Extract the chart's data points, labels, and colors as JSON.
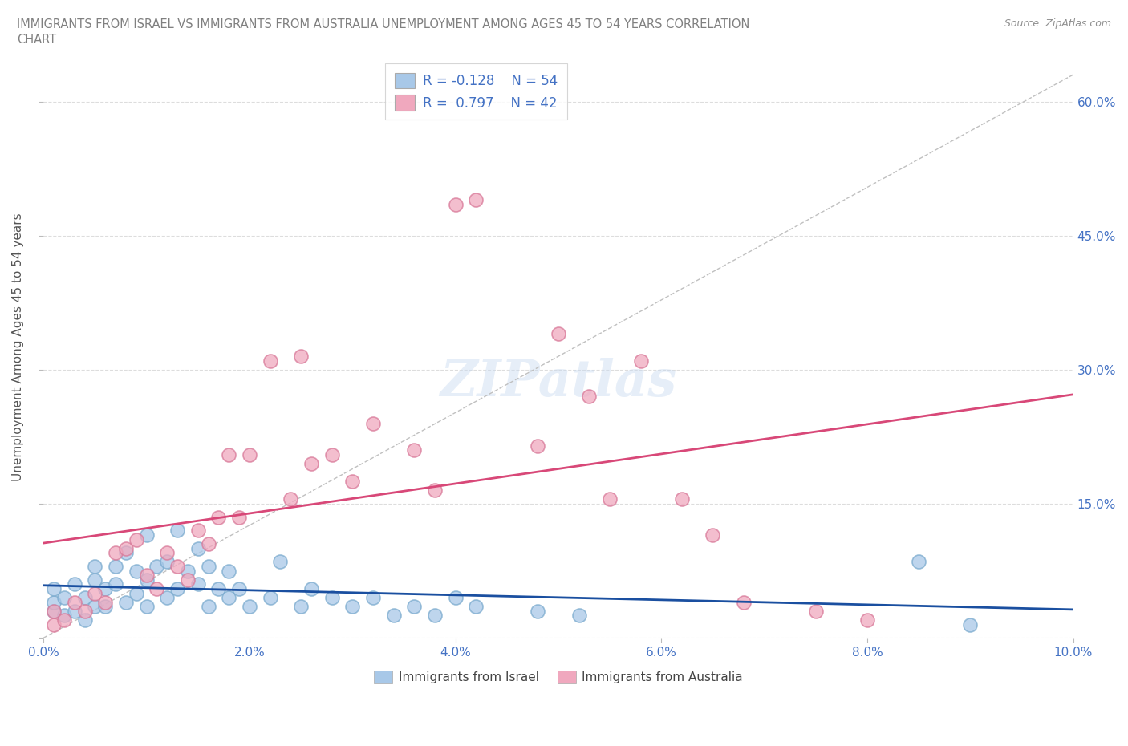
{
  "title_line1": "IMMIGRANTS FROM ISRAEL VS IMMIGRANTS FROM AUSTRALIA UNEMPLOYMENT AMONG AGES 45 TO 54 YEARS CORRELATION",
  "title_line2": "CHART",
  "source": "Source: ZipAtlas.com",
  "ylabel": "Unemployment Among Ages 45 to 54 years",
  "xlim": [
    0.0,
    0.1
  ],
  "ylim": [
    0.0,
    0.65
  ],
  "xticks": [
    0.0,
    0.02,
    0.04,
    0.06,
    0.08,
    0.1
  ],
  "yticks": [
    0.0,
    0.15,
    0.3,
    0.45,
    0.6
  ],
  "ytick_labels_right": [
    "",
    "15.0%",
    "30.0%",
    "45.0%",
    "60.0%"
  ],
  "xtick_labels": [
    "0.0%",
    "2.0%",
    "4.0%",
    "6.0%",
    "8.0%",
    "10.0%"
  ],
  "israel_color": "#a8c8e8",
  "australia_color": "#f0a8be",
  "israel_edge_color": "#7aaace",
  "australia_edge_color": "#d87898",
  "israel_line_color": "#1a4fa0",
  "australia_line_color": "#d84878",
  "R_israel": -0.128,
  "N_israel": 54,
  "R_australia": 0.797,
  "N_australia": 42,
  "israel_x": [
    0.001,
    0.001,
    0.001,
    0.002,
    0.002,
    0.003,
    0.003,
    0.004,
    0.004,
    0.005,
    0.005,
    0.005,
    0.006,
    0.006,
    0.007,
    0.007,
    0.008,
    0.008,
    0.009,
    0.009,
    0.01,
    0.01,
    0.01,
    0.011,
    0.012,
    0.012,
    0.013,
    0.013,
    0.014,
    0.015,
    0.015,
    0.016,
    0.016,
    0.017,
    0.018,
    0.018,
    0.019,
    0.02,
    0.022,
    0.023,
    0.025,
    0.026,
    0.028,
    0.03,
    0.032,
    0.034,
    0.036,
    0.038,
    0.04,
    0.042,
    0.048,
    0.052,
    0.085,
    0.09
  ],
  "israel_y": [
    0.03,
    0.04,
    0.055,
    0.025,
    0.045,
    0.03,
    0.06,
    0.045,
    0.02,
    0.035,
    0.065,
    0.08,
    0.035,
    0.055,
    0.06,
    0.08,
    0.04,
    0.095,
    0.05,
    0.075,
    0.035,
    0.065,
    0.115,
    0.08,
    0.045,
    0.085,
    0.12,
    0.055,
    0.075,
    0.06,
    0.1,
    0.035,
    0.08,
    0.055,
    0.045,
    0.075,
    0.055,
    0.035,
    0.045,
    0.085,
    0.035,
    0.055,
    0.045,
    0.035,
    0.045,
    0.025,
    0.035,
    0.025,
    0.045,
    0.035,
    0.03,
    0.025,
    0.085,
    0.015
  ],
  "australia_x": [
    0.001,
    0.001,
    0.002,
    0.003,
    0.004,
    0.005,
    0.006,
    0.007,
    0.008,
    0.009,
    0.01,
    0.011,
    0.012,
    0.013,
    0.014,
    0.015,
    0.016,
    0.017,
    0.018,
    0.019,
    0.02,
    0.022,
    0.024,
    0.025,
    0.026,
    0.028,
    0.03,
    0.032,
    0.036,
    0.038,
    0.04,
    0.042,
    0.048,
    0.05,
    0.053,
    0.055,
    0.058,
    0.062,
    0.065,
    0.068,
    0.075,
    0.08
  ],
  "australia_y": [
    0.015,
    0.03,
    0.02,
    0.04,
    0.03,
    0.05,
    0.04,
    0.095,
    0.1,
    0.11,
    0.07,
    0.055,
    0.095,
    0.08,
    0.065,
    0.12,
    0.105,
    0.135,
    0.205,
    0.135,
    0.205,
    0.31,
    0.155,
    0.315,
    0.195,
    0.205,
    0.175,
    0.24,
    0.21,
    0.165,
    0.485,
    0.49,
    0.215,
    0.34,
    0.27,
    0.155,
    0.31,
    0.155,
    0.115,
    0.04,
    0.03,
    0.02
  ],
  "watermark": "ZIPatlas",
  "background_color": "#ffffff",
  "grid_color": "#dddddd",
  "tick_color": "#4472c4",
  "title_color": "#808080",
  "source_color": "#909090",
  "legend_label_color": "#4472c4",
  "israel_legend_label": "Immigrants from Israel",
  "australia_legend_label": "Immigrants from Australia"
}
